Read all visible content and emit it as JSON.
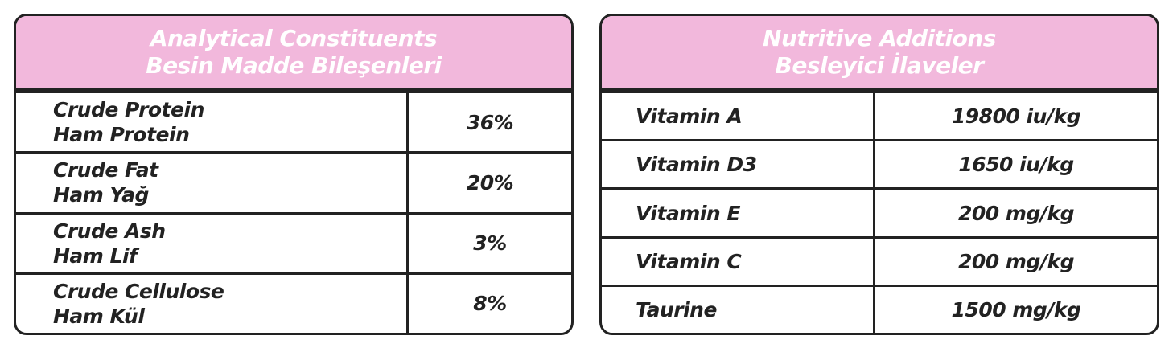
{
  "tables": [
    {
      "header": [
        "Analytical Constituents",
        "Besin Madde Bileşenleri"
      ],
      "rows": [
        {
          "label": [
            "Crude Protein",
            "Ham Protein"
          ],
          "value": "36%"
        },
        {
          "label": [
            "Crude Fat",
            "Ham Yağ"
          ],
          "value": "20%"
        },
        {
          "label": [
            "Crude Ash",
            "Ham Lif"
          ],
          "value": "3%"
        },
        {
          "label": [
            "Crude Cellulose",
            "Ham Kül"
          ],
          "value": "8%"
        }
      ]
    },
    {
      "header": [
        "Nutritive Additions",
        "Besleyici İlaveler"
      ],
      "rows": [
        {
          "label": [
            "Vitamin A"
          ],
          "value": "19800 iu/kg"
        },
        {
          "label": [
            "Vitamin D3"
          ],
          "value": "1650 iu/kg"
        },
        {
          "label": [
            "Vitamin E"
          ],
          "value": "200 mg/kg"
        },
        {
          "label": [
            "Vitamin C"
          ],
          "value": "200 mg/kg"
        },
        {
          "label": [
            "Taurine"
          ],
          "value": "1500 mg/kg"
        }
      ]
    }
  ]
}
